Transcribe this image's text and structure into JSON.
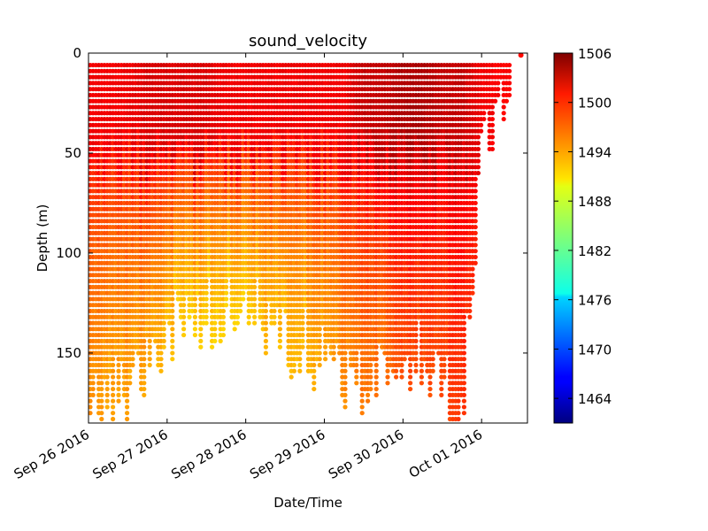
{
  "chart_data": {
    "type": "scatter",
    "title": "sound_velocity",
    "xlabel": "Date/Time",
    "ylabel": "Depth (m)",
    "x_range": [
      "2016-09-26T00:00",
      "2016-10-01T14:00"
    ],
    "ylim": [
      185,
      0
    ],
    "y_ticks": [
      0,
      50,
      100,
      150
    ],
    "x_ticks": [
      "2016-09-26",
      "2016-09-27",
      "2016-09-28",
      "2016-09-29",
      "2016-09-30",
      "2016-10-01"
    ],
    "x_tick_labels": [
      "Sep 26 2016",
      "Sep 27 2016",
      "Sep 28 2016",
      "Sep 29 2016",
      "Sep 30 2016",
      "Oct 01 2016"
    ],
    "colorbar": {
      "colormap": "jet",
      "range": [
        1461,
        1506
      ],
      "ticks": [
        1464,
        1470,
        1476,
        1482,
        1488,
        1494,
        1500,
        1506
      ]
    },
    "grid": false,
    "legend": "none",
    "profiles_summary": [
      {
        "x": "2016-09-26T00:00",
        "max_depth": 185,
        "vel_surface": 1501,
        "vel_bottom": 1494
      },
      {
        "x": "2016-09-26T06:00",
        "max_depth": 160,
        "vel_surface": 1501,
        "vel_bottom": 1493
      },
      {
        "x": "2016-09-26T12:00",
        "max_depth": 175,
        "vel_surface": 1501,
        "vel_bottom": 1493
      },
      {
        "x": "2016-09-26T18:00",
        "max_depth": 150,
        "vel_surface": 1502,
        "vel_bottom": 1493
      },
      {
        "x": "2016-09-27T00:00",
        "max_depth": 140,
        "vel_surface": 1502,
        "vel_bottom": 1492
      },
      {
        "x": "2016-09-27T06:00",
        "max_depth": 132,
        "vel_surface": 1502,
        "vel_bottom": 1491
      },
      {
        "x": "2016-09-27T12:00",
        "max_depth": 130,
        "vel_surface": 1502,
        "vel_bottom": 1491
      },
      {
        "x": "2016-09-27T18:00",
        "max_depth": 132,
        "vel_surface": 1501,
        "vel_bottom": 1491
      },
      {
        "x": "2016-09-28T00:00",
        "max_depth": 126,
        "vel_surface": 1501,
        "vel_bottom": 1491
      },
      {
        "x": "2016-09-28T06:00",
        "max_depth": 133,
        "vel_surface": 1501,
        "vel_bottom": 1492
      },
      {
        "x": "2016-09-28T12:00",
        "max_depth": 145,
        "vel_surface": 1501,
        "vel_bottom": 1492
      },
      {
        "x": "2016-09-28T18:00",
        "max_depth": 145,
        "vel_surface": 1501,
        "vel_bottom": 1492
      },
      {
        "x": "2016-09-29T00:00",
        "max_depth": 155,
        "vel_surface": 1501,
        "vel_bottom": 1493
      },
      {
        "x": "2016-09-29T06:00",
        "max_depth": 158,
        "vel_surface": 1501,
        "vel_bottom": 1494
      },
      {
        "x": "2016-09-29T12:00",
        "max_depth": 165,
        "vel_surface": 1503,
        "vel_bottom": 1495
      },
      {
        "x": "2016-09-29T18:00",
        "max_depth": 160,
        "vel_surface": 1503,
        "vel_bottom": 1495
      },
      {
        "x": "2016-09-30T00:00",
        "max_depth": 160,
        "vel_surface": 1504,
        "vel_bottom": 1497
      },
      {
        "x": "2016-09-30T06:00",
        "max_depth": 152,
        "vel_surface": 1504,
        "vel_bottom": 1497
      },
      {
        "x": "2016-09-30T12:00",
        "max_depth": 165,
        "vel_surface": 1503,
        "vel_bottom": 1497
      },
      {
        "x": "2016-09-30T18:00",
        "max_depth": 178,
        "vel_surface": 1503,
        "vel_bottom": 1498
      },
      {
        "x": "2016-10-01T00:00",
        "max_depth": 52,
        "vel_surface": 1501,
        "vel_bottom": 1499
      },
      {
        "x": "2016-10-01T12:00",
        "max_depth": 1,
        "vel_surface": 1500,
        "vel_bottom": 1500
      }
    ]
  }
}
